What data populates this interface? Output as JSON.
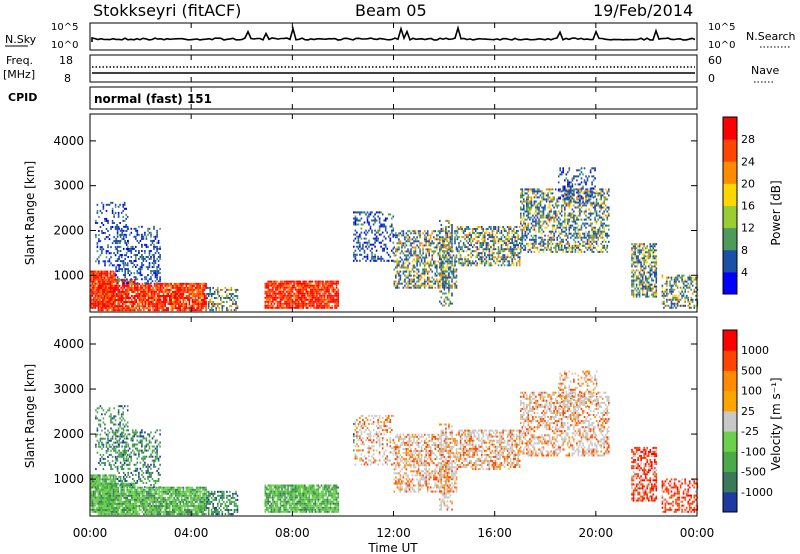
{
  "header": {
    "site": "Stokkseyri (fitACF)",
    "beam": "Beam 05",
    "date": "19/Feb/2014"
  },
  "cpid_label": "CPID",
  "cpid_value": "normal (fast) 151",
  "colors": {
    "power": [
      "#0000ff",
      "#1c4fa8",
      "#4e9a5a",
      "#9acd32",
      "#ffd700",
      "#ff8c00",
      "#ff4500",
      "#ff0000"
    ],
    "velocity": [
      "#ff0000",
      "#ff4500",
      "#ff8c00",
      "#ffa500",
      "#c8c8c8",
      "#6bd14a",
      "#4aaa4a",
      "#3a7a5a",
      "#1c3aa0"
    ]
  },
  "chart_data": [
    {
      "type": "line",
      "panel": "noise",
      "left_label": "N.Sky",
      "right_label": "N.Search",
      "yticks_left": [
        "10^5",
        "10^0"
      ],
      "yticks_right": [
        "10^5",
        "10^0"
      ]
    },
    {
      "type": "line",
      "panel": "frequency",
      "left_label": "Freq.",
      "left_unit": "[MHz]",
      "right_label": "Nave",
      "yticks_left": [
        "18",
        "8"
      ],
      "yticks_right": [
        "60",
        "0"
      ],
      "frequency_mhz": 10,
      "nave": 50
    },
    {
      "type": "heatmap",
      "panel": "power",
      "ylabel": "Slant Range [km]",
      "yticks": [
        "1000",
        "2000",
        "3000",
        "4000"
      ],
      "ylim": [
        180,
        4600
      ],
      "colorbar_label": "Power [dB]",
      "colorbar_ticks": [
        "4",
        "8",
        "12",
        "16",
        "20",
        "24",
        "28"
      ]
    },
    {
      "type": "heatmap",
      "panel": "velocity",
      "ylabel": "Slant Range [km]",
      "yticks": [
        "1000",
        "2000",
        "3000",
        "4000"
      ],
      "ylim": [
        180,
        4600
      ],
      "colorbar_label": "Velocity [m s⁻¹]",
      "colorbar_ticks": [
        "1000",
        "500",
        "100",
        "25",
        "-25",
        "-100",
        "-500",
        "-1000"
      ]
    }
  ],
  "time_axis": {
    "xlabel": "Time UT",
    "ticks": [
      "00:00",
      "04:00",
      "08:00",
      "12:00",
      "16:00",
      "20:00",
      "00:00"
    ]
  }
}
